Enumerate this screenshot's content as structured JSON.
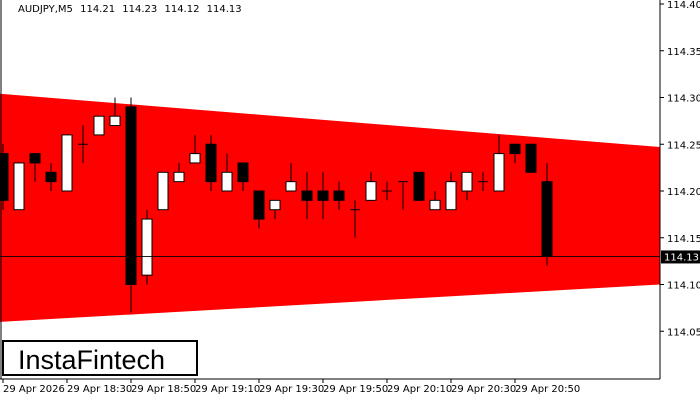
{
  "header": {
    "symbol": "AUDJPY,M5",
    "open": "114.21",
    "high": "114.23",
    "low": "114.12",
    "close": "114.13"
  },
  "logo": "InstaFintech",
  "chart_data": {
    "type": "candlestick",
    "symbol": "AUDJPY",
    "timeframe": "M5",
    "ylim": [
      114.0,
      114.4
    ],
    "y_ticks": [
      "114.40",
      "114.35",
      "114.30",
      "114.25",
      "114.20",
      "114.15",
      "114.10",
      "114.05"
    ],
    "x_ticks": [
      "29 Apr 2026",
      "29 Apr 18:30",
      "29 Apr 18:50",
      "29 Apr 19:10",
      "29 Apr 19:30",
      "29 Apr 19:50",
      "29 Apr 20:10",
      "29 Apr 20:30",
      "29 Apr 20:50"
    ],
    "current_price": "114.13",
    "pattern": {
      "name": "symmetrical triangle",
      "color": "#ff0000",
      "upper": [
        114.304,
        114.247
      ],
      "lower": [
        114.06,
        114.1
      ]
    },
    "candles": [
      [
        114.24,
        114.25,
        114.18,
        114.19
      ],
      [
        114.18,
        114.23,
        114.18,
        114.23
      ],
      [
        114.24,
        114.24,
        114.21,
        114.23
      ],
      [
        114.22,
        114.23,
        114.2,
        114.21
      ],
      [
        114.2,
        114.26,
        114.2,
        114.26
      ],
      [
        114.25,
        114.27,
        114.23,
        114.25
      ],
      [
        114.26,
        114.28,
        114.26,
        114.28
      ],
      [
        114.27,
        114.3,
        114.27,
        114.28
      ],
      [
        114.29,
        114.3,
        114.07,
        114.1
      ],
      [
        114.11,
        114.18,
        114.1,
        114.17
      ],
      [
        114.18,
        114.22,
        114.18,
        114.22
      ],
      [
        114.21,
        114.23,
        114.21,
        114.22
      ],
      [
        114.23,
        114.26,
        114.23,
        114.24
      ],
      [
        114.25,
        114.26,
        114.2,
        114.21
      ],
      [
        114.2,
        114.24,
        114.2,
        114.22
      ],
      [
        114.23,
        114.23,
        114.2,
        114.21
      ],
      [
        114.2,
        114.2,
        114.16,
        114.17
      ],
      [
        114.18,
        114.19,
        114.17,
        114.19
      ],
      [
        114.2,
        114.23,
        114.2,
        114.21
      ],
      [
        114.2,
        114.22,
        114.17,
        114.19
      ],
      [
        114.2,
        114.22,
        114.17,
        114.19
      ],
      [
        114.2,
        114.21,
        114.18,
        114.19
      ],
      [
        114.18,
        114.19,
        114.15,
        114.18
      ],
      [
        114.19,
        114.22,
        114.19,
        114.21
      ],
      [
        114.2,
        114.21,
        114.19,
        114.2
      ],
      [
        114.21,
        114.21,
        114.18,
        114.21
      ],
      [
        114.22,
        114.22,
        114.19,
        114.19
      ],
      [
        114.18,
        114.2,
        114.18,
        114.19
      ],
      [
        114.18,
        114.22,
        114.18,
        114.21
      ],
      [
        114.2,
        114.22,
        114.19,
        114.22
      ],
      [
        114.21,
        114.22,
        114.2,
        114.21
      ],
      [
        114.2,
        114.26,
        114.2,
        114.24
      ],
      [
        114.25,
        114.25,
        114.23,
        114.24
      ],
      [
        114.25,
        114.25,
        114.22,
        114.22
      ],
      [
        114.21,
        114.23,
        114.12,
        114.13
      ]
    ]
  }
}
